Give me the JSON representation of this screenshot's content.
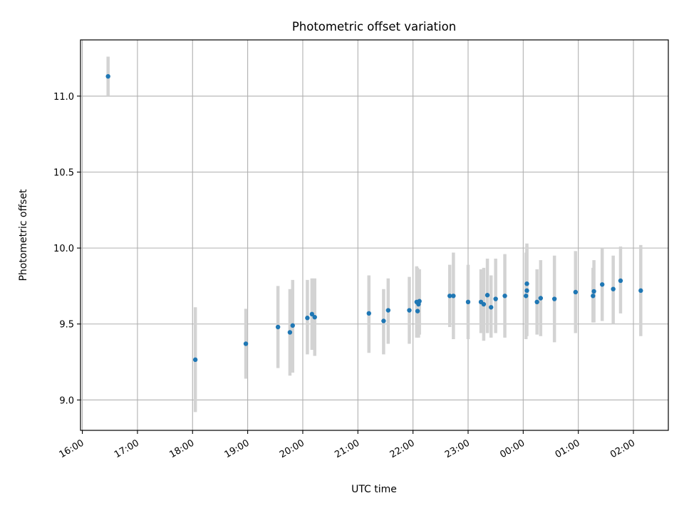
{
  "chart_data": {
    "type": "scatter",
    "title": "Photometric offset variation",
    "xlabel": "UTC time",
    "ylabel": "Photometric offset",
    "grid": true,
    "xlim": [
      "15:58",
      "26:38"
    ],
    "ylim": [
      8.8,
      11.37
    ],
    "x_ticks": [
      "16:00",
      "17:00",
      "18:00",
      "19:00",
      "20:00",
      "21:00",
      "22:00",
      "23:00",
      "00:00",
      "01:00",
      "02:00"
    ],
    "y_ticks": [
      "9.0",
      "9.5",
      "10.0",
      "10.5",
      "11.0"
    ],
    "colors": {
      "points": "#1f77b4",
      "error_bars": "#d3d3d3",
      "grid": "#b0b0b0"
    },
    "series": [
      {
        "points": [
          {
            "x": "16:28",
            "y": 11.13,
            "lo": 11.0,
            "hi": 11.26
          },
          {
            "x": "18:03",
            "y": 9.265,
            "lo": 8.92,
            "hi": 9.61
          },
          {
            "x": "18:58",
            "y": 9.37,
            "lo": 9.14,
            "hi": 9.6
          },
          {
            "x": "19:33",
            "y": 9.48,
            "lo": 9.21,
            "hi": 9.75
          },
          {
            "x": "19:46",
            "y": 9.445,
            "lo": 9.16,
            "hi": 9.73
          },
          {
            "x": "19:49",
            "y": 9.49,
            "lo": 9.18,
            "hi": 9.79
          },
          {
            "x": "20:05",
            "y": 9.54,
            "lo": 9.3,
            "hi": 9.79
          },
          {
            "x": "20:10",
            "y": 9.565,
            "lo": 9.33,
            "hi": 9.8
          },
          {
            "x": "20:13",
            "y": 9.545,
            "lo": 9.29,
            "hi": 9.8
          },
          {
            "x": "21:12",
            "y": 9.57,
            "lo": 9.31,
            "hi": 9.82
          },
          {
            "x": "21:28",
            "y": 9.52,
            "lo": 9.3,
            "hi": 9.73
          },
          {
            "x": "21:33",
            "y": 9.59,
            "lo": 9.37,
            "hi": 9.8
          },
          {
            "x": "21:56",
            "y": 9.59,
            "lo": 9.37,
            "hi": 9.81
          },
          {
            "x": "22:04",
            "y": 9.645,
            "lo": 9.41,
            "hi": 9.88
          },
          {
            "x": "22:05",
            "y": 9.585,
            "lo": 9.43,
            "hi": 9.87
          },
          {
            "x": "22:07",
            "y": 9.65,
            "lo": 9.43,
            "hi": 9.86
          },
          {
            "x": "22:06",
            "y": 9.63,
            "lo": 9.41,
            "hi": 9.85
          },
          {
            "x": "22:40",
            "y": 9.685,
            "lo": 9.48,
            "hi": 9.89
          },
          {
            "x": "22:44",
            "y": 9.685,
            "lo": 9.4,
            "hi": 9.97
          },
          {
            "x": "23:00",
            "y": 9.645,
            "lo": 9.4,
            "hi": 9.89
          },
          {
            "x": "23:14",
            "y": 9.645,
            "lo": 9.44,
            "hi": 9.86
          },
          {
            "x": "23:17",
            "y": 9.63,
            "lo": 9.39,
            "hi": 9.87
          },
          {
            "x": "23:21",
            "y": 9.69,
            "lo": 9.44,
            "hi": 9.93
          },
          {
            "x": "23:25",
            "y": 9.61,
            "lo": 9.41,
            "hi": 9.82
          },
          {
            "x": "23:30",
            "y": 9.665,
            "lo": 9.44,
            "hi": 9.93
          },
          {
            "x": "23:40",
            "y": 9.685,
            "lo": 9.41,
            "hi": 9.96
          },
          {
            "x": "24:04",
            "y": 9.765,
            "lo": 9.5,
            "hi": 10.03
          },
          {
            "x": "24:04",
            "y": 9.72,
            "lo": 9.42,
            "hi": 10.01
          },
          {
            "x": "24:03",
            "y": 9.685,
            "lo": 9.4,
            "hi": 9.97
          },
          {
            "x": "24:15",
            "y": 9.645,
            "lo": 9.43,
            "hi": 9.86
          },
          {
            "x": "24:19",
            "y": 9.67,
            "lo": 9.42,
            "hi": 9.92
          },
          {
            "x": "24:34",
            "y": 9.665,
            "lo": 9.38,
            "hi": 9.95
          },
          {
            "x": "24:57",
            "y": 9.71,
            "lo": 9.44,
            "hi": 9.98
          },
          {
            "x": "25:17",
            "y": 9.715,
            "lo": 9.51,
            "hi": 9.92
          },
          {
            "x": "25:16",
            "y": 9.685,
            "lo": 9.51,
            "hi": 9.87
          },
          {
            "x": "25:26",
            "y": 9.76,
            "lo": 9.52,
            "hi": 10.0
          },
          {
            "x": "25:38",
            "y": 9.73,
            "lo": 9.5,
            "hi": 9.95
          },
          {
            "x": "25:46",
            "y": 9.785,
            "lo": 9.57,
            "hi": 10.01
          },
          {
            "x": "26:08",
            "y": 9.72,
            "lo": 9.42,
            "hi": 10.02
          }
        ]
      }
    ]
  }
}
